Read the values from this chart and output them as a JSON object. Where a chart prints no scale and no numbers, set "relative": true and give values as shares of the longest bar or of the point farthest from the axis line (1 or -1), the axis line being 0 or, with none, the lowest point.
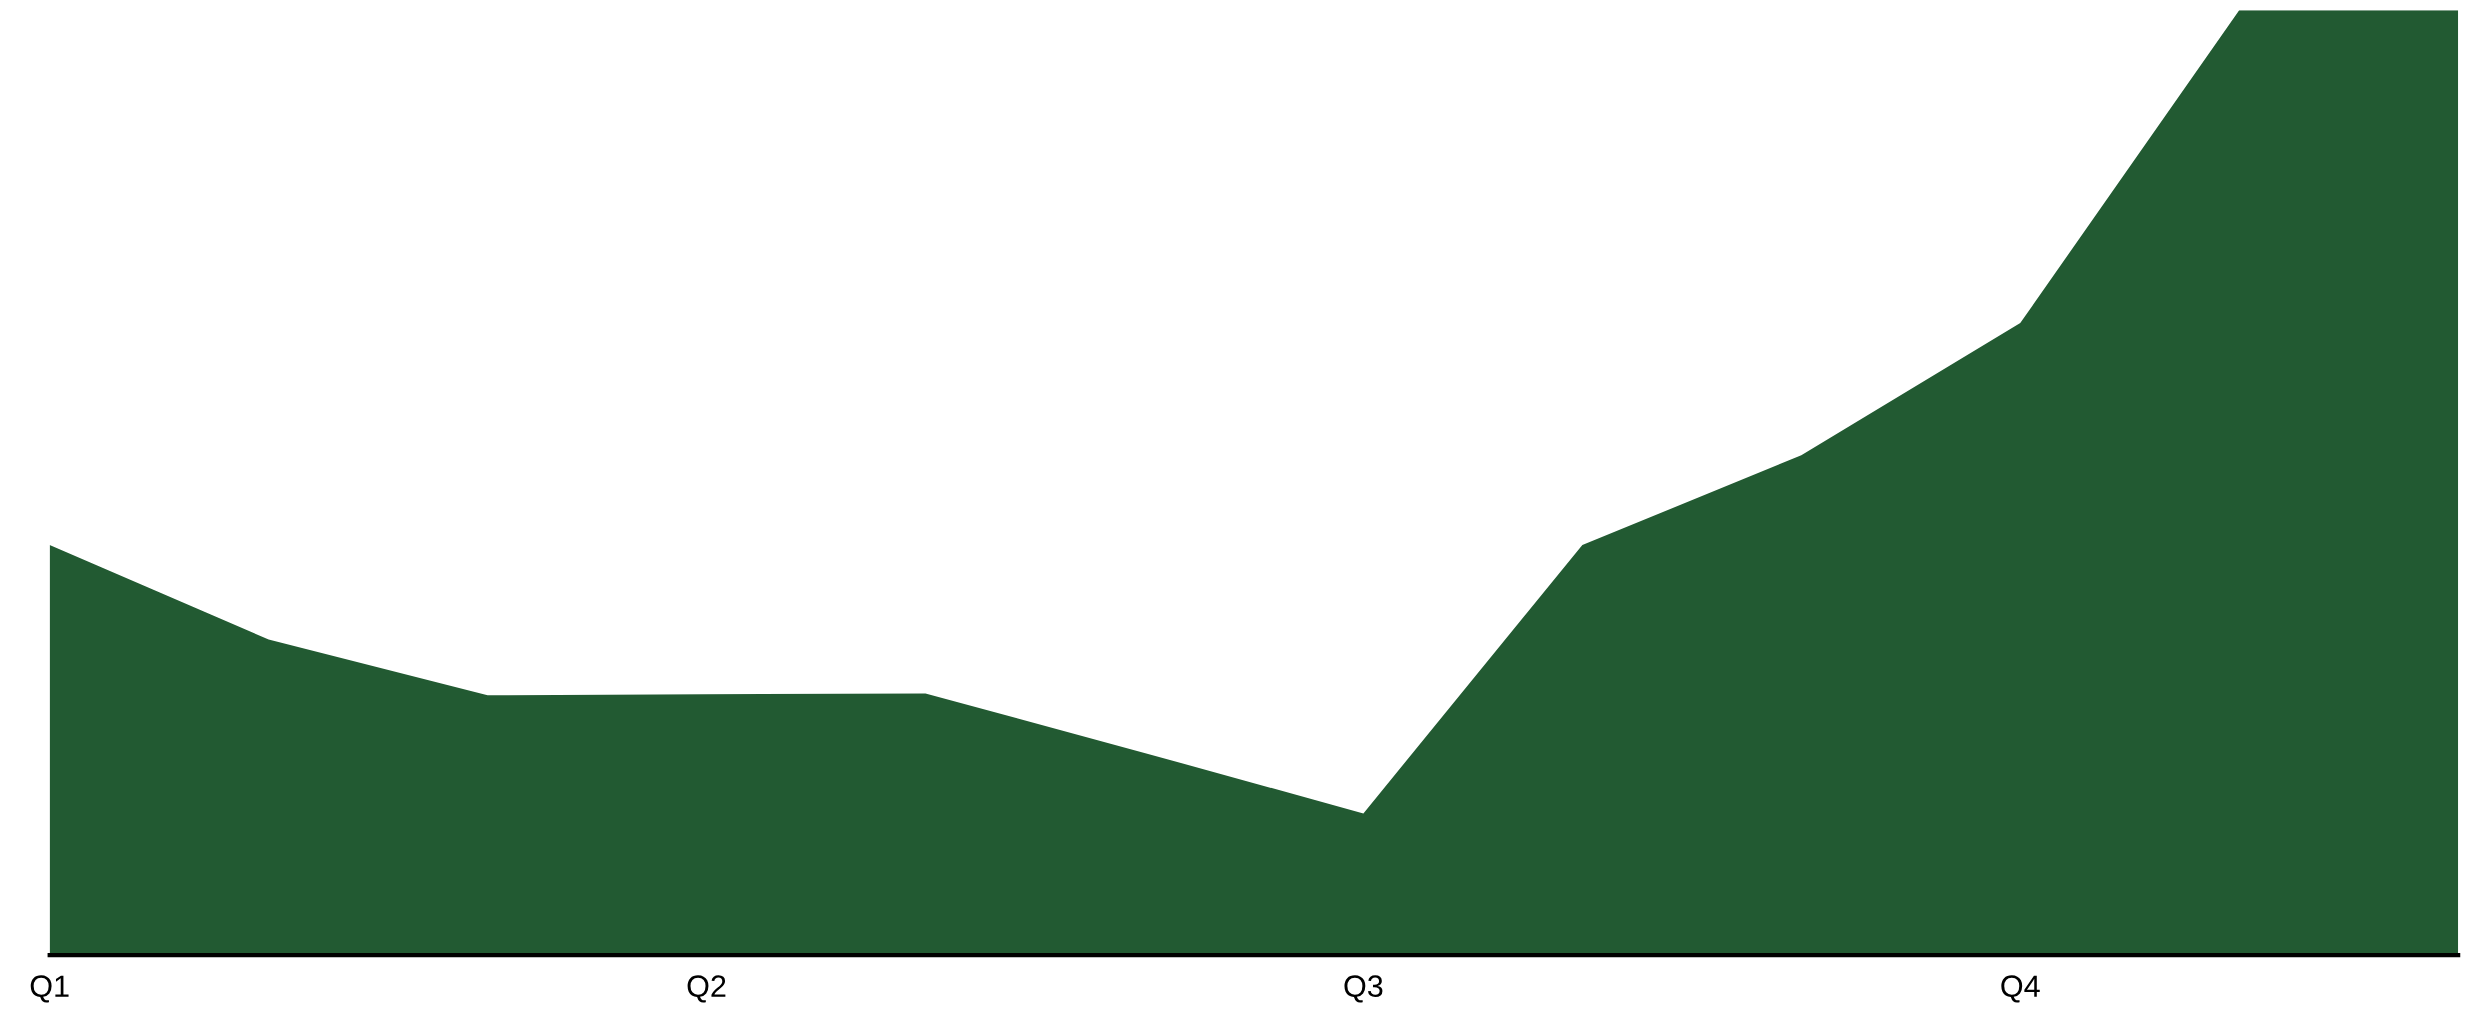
{
  "chart_data": {
    "type": "area",
    "relative": true,
    "categories": [
      "Q1",
      null,
      null,
      "Q2",
      null,
      null,
      "Q3",
      null,
      null,
      "Q4",
      null,
      null
    ],
    "series": [
      {
        "color": "#225a32",
        "values": [
          0.434,
          0.334,
          0.275,
          0.276,
          0.277,
          0.214,
          0.15,
          0.434,
          0.529,
          0.669,
          1,
          1
        ]
      }
    ]
  }
}
